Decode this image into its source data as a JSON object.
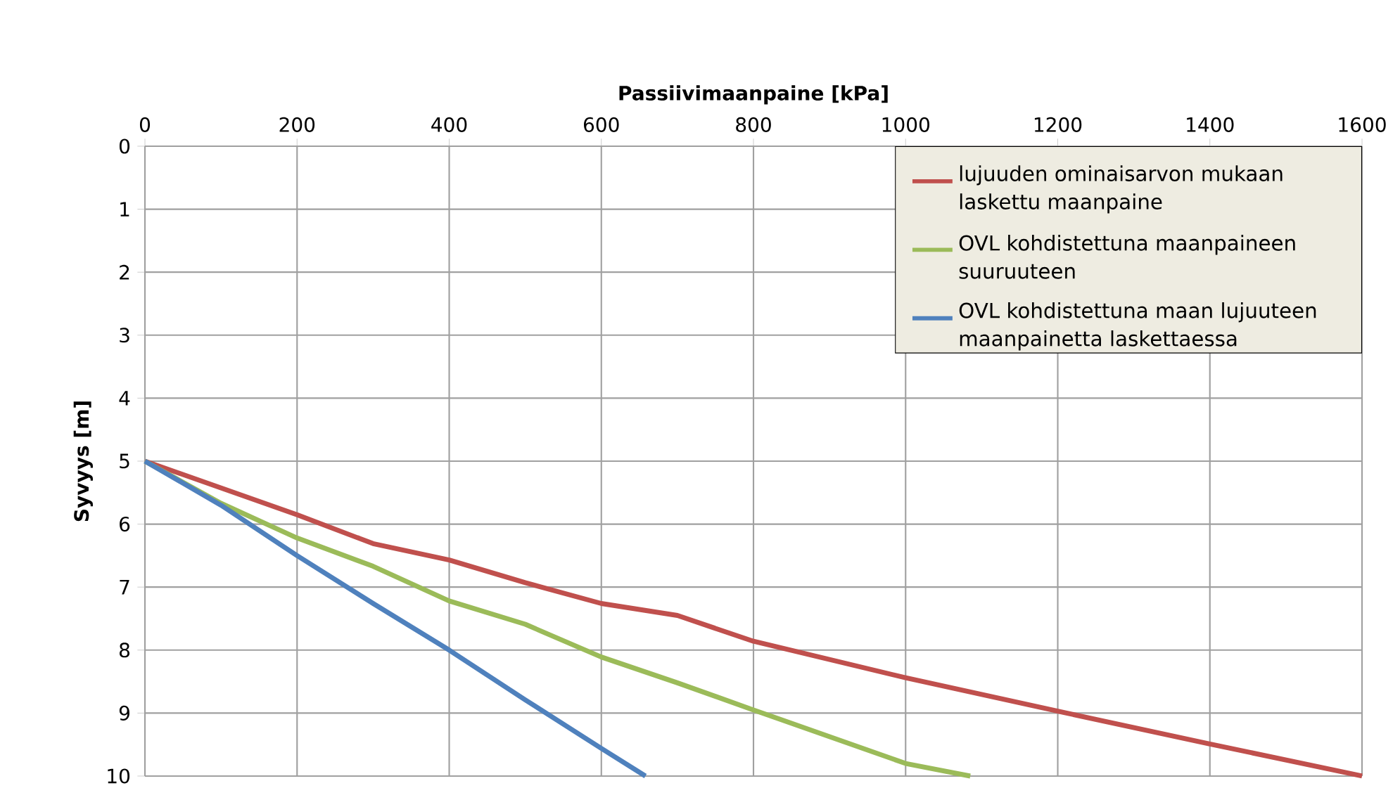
{
  "chart_data": {
    "type": "line",
    "xlabel": "Passiivimaanpaine  [kPa]",
    "ylabel": "Syvyys  [m]",
    "xlim": [
      0,
      1600
    ],
    "xticks": [
      0,
      200,
      400,
      600,
      800,
      1000,
      1200,
      1400,
      1600
    ],
    "ylim": [
      10,
      0
    ],
    "yticks": [
      0,
      1,
      2,
      3,
      4,
      5,
      6,
      7,
      8,
      9,
      10
    ],
    "grid": true,
    "legend": "top right",
    "line_style": "solid",
    "marker": "none",
    "series": [
      {
        "name": "lujuuden ominaisarvon mukaan laskettu maanpaine",
        "color": "#c0504d",
        "x": [
          0,
          200,
          300,
          400,
          500,
          600,
          700,
          800,
          1000,
          1200,
          1400,
          1600
        ],
        "values": [
          5,
          5.85,
          6.31,
          6.57,
          6.93,
          7.26,
          7.45,
          7.86,
          8.44,
          8.97,
          9.49,
          10
        ]
      },
      {
        "name": "OVL kohdistettuna maanpaineen suuruuteen",
        "color": "#9bbb59",
        "x": [
          0,
          100,
          200,
          300,
          400,
          500,
          600,
          700,
          800,
          1000,
          1085
        ],
        "values": [
          5,
          5.67,
          6.22,
          6.67,
          7.22,
          7.59,
          8.11,
          8.52,
          8.95,
          9.8,
          10
        ]
      },
      {
        "name": "OVL kohdistettuna maan lujuuteen maanpainetta laskettaessa",
        "color": "#4f81bd",
        "x": [
          0,
          100,
          200,
          300,
          400,
          500,
          600,
          658
        ],
        "values": [
          5,
          5.7,
          6.5,
          7.26,
          8.0,
          8.79,
          9.56,
          10
        ]
      }
    ]
  }
}
